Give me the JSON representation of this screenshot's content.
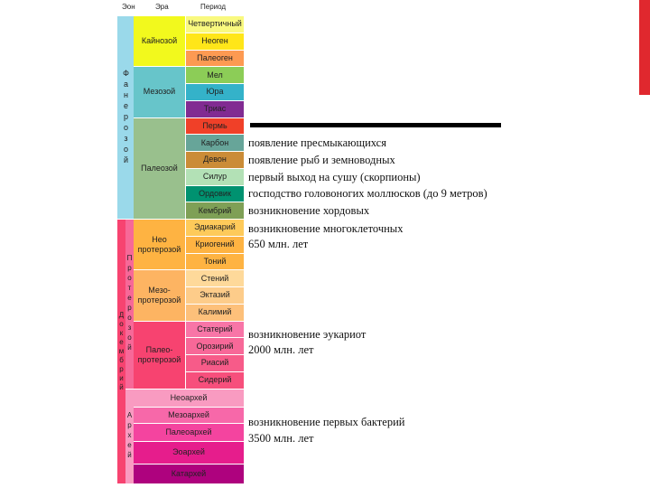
{
  "header": {
    "columns": [
      "Эон",
      "Эра",
      "Период"
    ]
  },
  "eons": [
    "Фанерозой",
    "Докембрий",
    "Протерозой",
    "Архей"
  ],
  "eras": [
    "Кайнозой",
    "Мезозой",
    "Палеозой",
    "Нео протерозой",
    "Мезо-протерозой",
    "Палео-протерозой"
  ],
  "periods": [
    "Четвертичный",
    "Неоген",
    "Палеоген",
    "Мел",
    "Юра",
    "Триас",
    "Пермь",
    "Карбон",
    "Девон",
    "Силур",
    "Ордовик",
    "Кембрий",
    "Эдиакарий",
    "Криогений",
    "Тоний",
    "Стений",
    "Эктазий",
    "Калимий",
    "Статерий",
    "Орозирий",
    "Риасий",
    "Сидерий"
  ],
  "archean_eras": [
    "Неоархей",
    "Мезоархей",
    "Палеоархей",
    "Эоархей",
    "Катархей"
  ],
  "annotations": [
    "появление пресмыкающихся",
    "появление рыб и земноводных",
    "первый выход на сушу (скорпионы)",
    "господство головоногих моллюсков (до 9 метров)",
    "возникновение хордовых",
    "возникновение многоклеточных",
    "650 млн. лет",
    "возникновение эукариот",
    "2000 млн. лет",
    "возникновение первых бактерий",
    "3500 млн. лет"
  ]
}
